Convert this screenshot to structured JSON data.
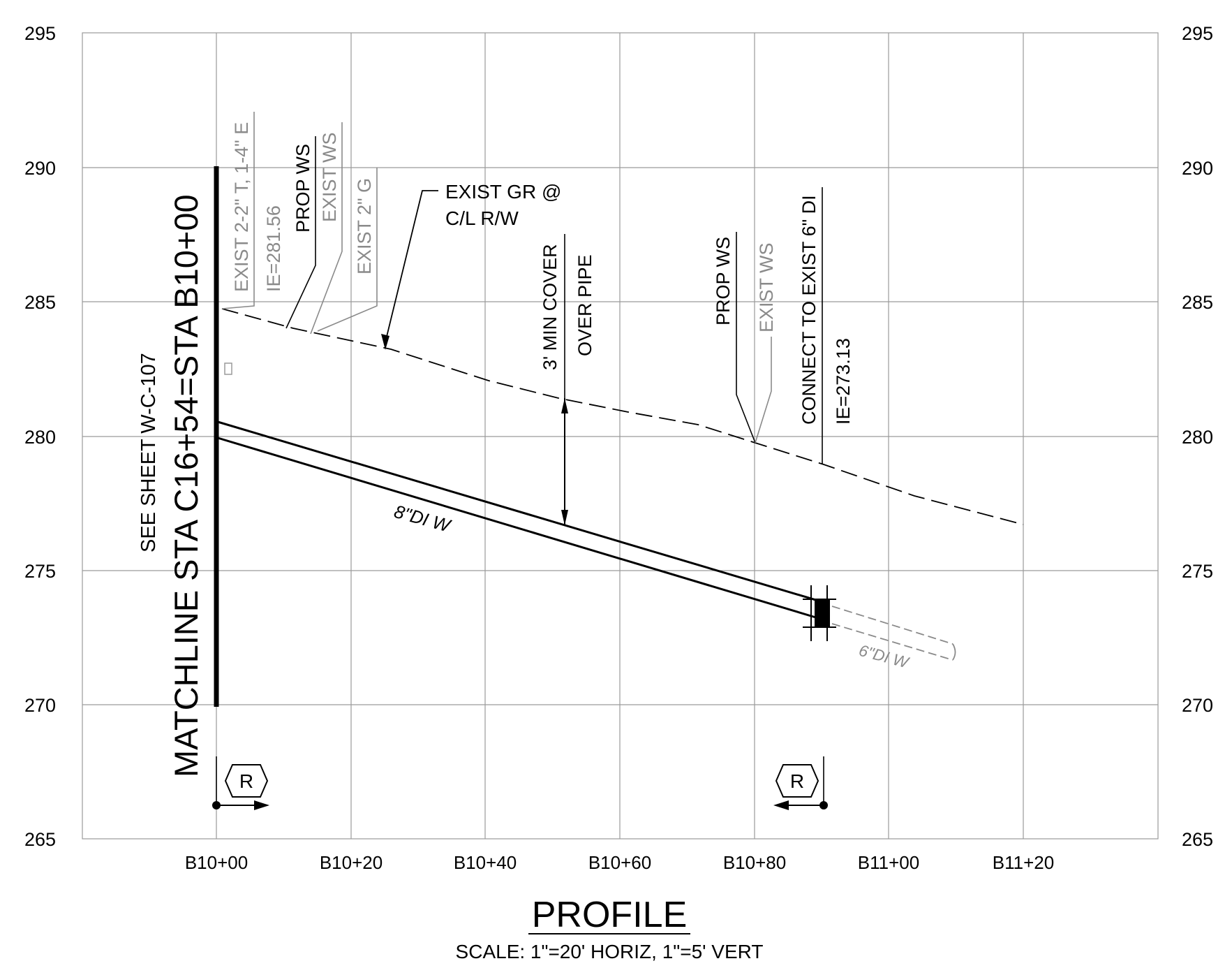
{
  "y_ticks": [
    "295",
    "290",
    "285",
    "280",
    "275",
    "270",
    "265"
  ],
  "x_ticks": [
    "B10+00",
    "B10+20",
    "B10+40",
    "B10+60",
    "B10+80",
    "B11+00",
    "B11+20"
  ],
  "matchline": {
    "main": "MATCHLINE STA C16+54=STA B10+00",
    "see_sheet": "SEE SHEET W-C-107"
  },
  "labels": {
    "exist_tel_elec": "EXIST 2-2\" T, 1-4\" E",
    "ie_left": "IE=281.56",
    "prop_ws_left": "PROP WS",
    "exist_ws_left": "EXIST WS",
    "exist_gas": "EXIST 2\" G",
    "exist_gr_line1": "EXIST GR @",
    "exist_gr_line2": "C/L R/W",
    "cover_line1": "3' MIN COVER",
    "cover_line2": "OVER PIPE",
    "prop_ws_right": "PROP WS",
    "exist_ws_right": "EXIST WS",
    "connect": "CONNECT TO EXIST 6\" DI",
    "ie_right": "IE=273.13",
    "pipe_main": "8\"DI W",
    "pipe_exist": "6\"DI W",
    "marker_left": "R",
    "marker_right": "R"
  },
  "title": "PROFILE",
  "scale_text": "SCALE: 1\"=20' HORIZ, 1\"=5' VERT",
  "colors": {
    "line": "#000000",
    "grid": "#9a9a9a",
    "existing": "#8a8a8a"
  }
}
